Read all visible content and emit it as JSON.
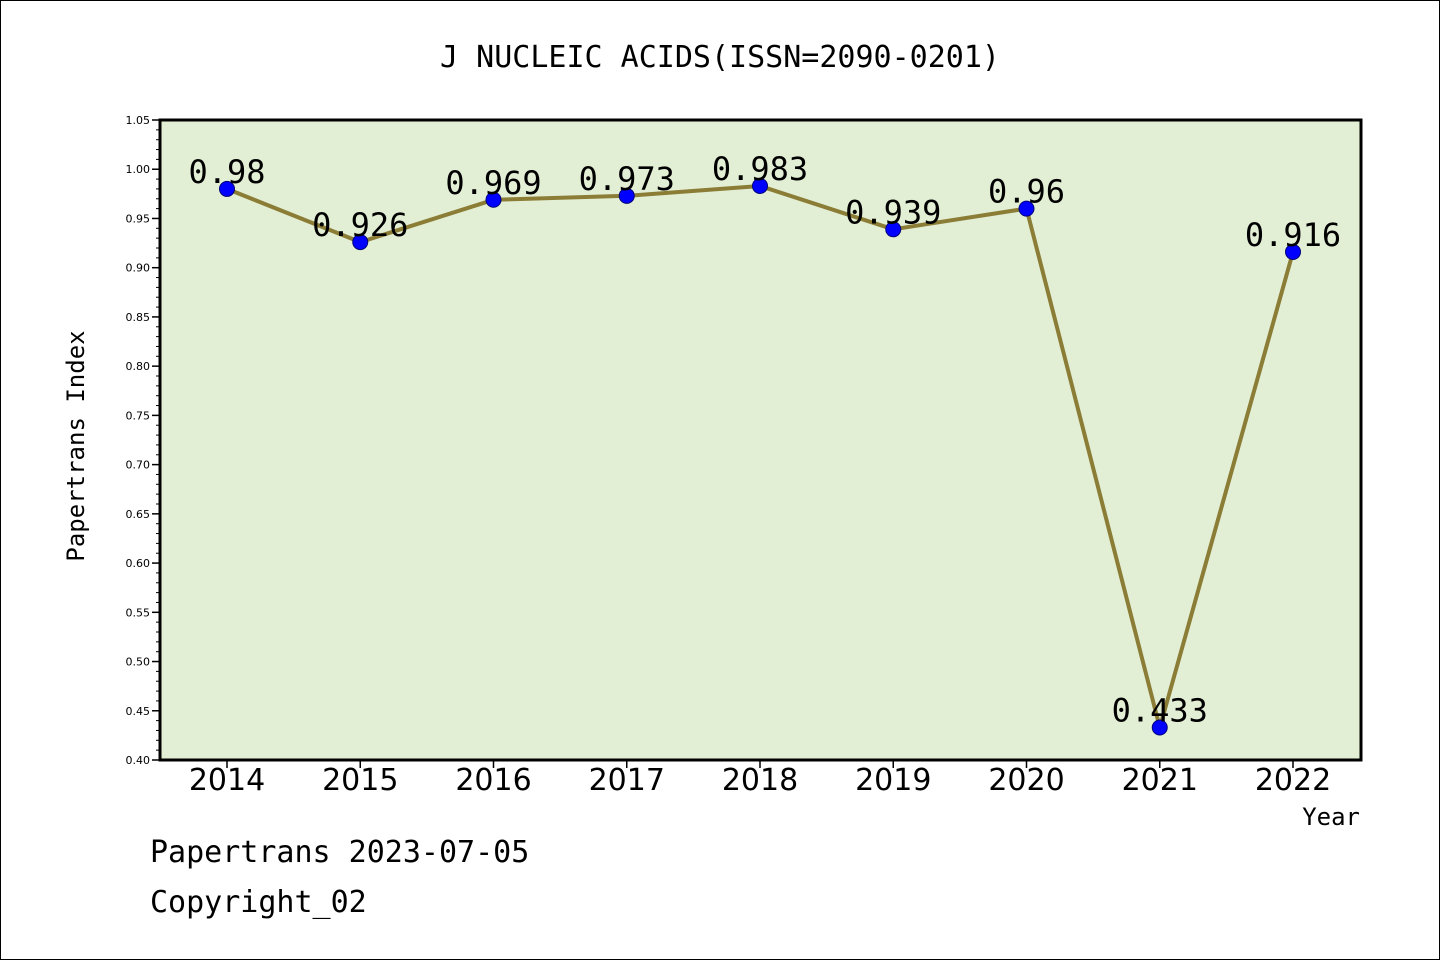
{
  "chart_data": {
    "type": "line",
    "title": "J NUCLEIC ACIDS(ISSN=2090-0201)",
    "xlabel": "Year",
    "ylabel": "Papertrans Index",
    "categories": [
      "2014",
      "2015",
      "2016",
      "2017",
      "2018",
      "2019",
      "2020",
      "2021",
      "2022"
    ],
    "values": [
      0.98,
      0.926,
      0.969,
      0.973,
      0.983,
      0.939,
      0.96,
      0.433,
      0.916
    ],
    "data_labels": [
      "0.98",
      "0.926",
      "0.969",
      "0.973",
      "0.983",
      "0.939",
      "0.96",
      "0.433",
      "0.916"
    ],
    "ylim": [
      0.4,
      1.05
    ],
    "yticks": [
      "0.40",
      "0.45",
      "0.50",
      "0.55",
      "0.60",
      "0.65",
      "0.70",
      "0.75",
      "0.80",
      "0.85",
      "0.90",
      "0.95",
      "1.00",
      "1.05"
    ],
    "grid": false,
    "colors": {
      "plot_bg": "#e2efd5",
      "line": "#8b7d36",
      "marker": "#0000ff"
    }
  },
  "footer": {
    "line1": "Papertrans 2023-07-05",
    "line2": "Copyright_02"
  }
}
